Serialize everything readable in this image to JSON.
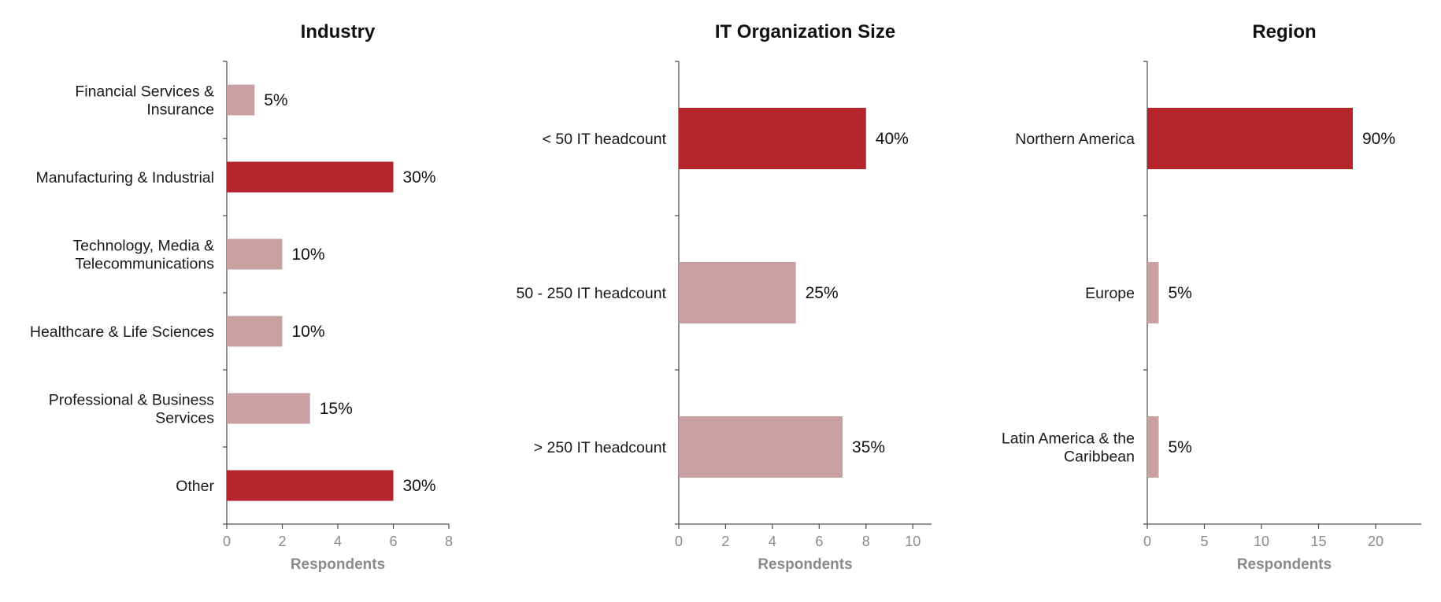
{
  "colors": {
    "highlight": "#b5252e",
    "normal": "#c9a0a2"
  },
  "chart_data": [
    {
      "type": "bar",
      "orientation": "horizontal",
      "title": "Industry",
      "xlabel": "Respondents",
      "xlim": [
        0,
        8
      ],
      "xticks": [
        0,
        2,
        4,
        6,
        8
      ],
      "categories": [
        [
          "Financial Services &",
          "Insurance"
        ],
        [
          "Manufacturing & Industrial"
        ],
        [
          "Technology, Media &",
          "Telecommunications"
        ],
        [
          "Healthcare & Life Sciences"
        ],
        [
          "Professional & Business",
          "Services"
        ],
        [
          "Other"
        ]
      ],
      "values": [
        1,
        6,
        2,
        2,
        3,
        6
      ],
      "labels": [
        "5%",
        "30%",
        "10%",
        "10%",
        "15%",
        "30%"
      ],
      "highlight": [
        false,
        true,
        false,
        false,
        false,
        true
      ]
    },
    {
      "type": "bar",
      "orientation": "horizontal",
      "title": "IT Organization Size",
      "xlabel": "Respondents",
      "xlim": [
        0,
        10.8
      ],
      "xticks": [
        0,
        2,
        4,
        6,
        8,
        10
      ],
      "categories": [
        [
          "< 50 IT headcount"
        ],
        [
          "50 - 250 IT headcount"
        ],
        [
          "> 250 IT headcount"
        ]
      ],
      "values": [
        8,
        5,
        7
      ],
      "labels": [
        "40%",
        "25%",
        "35%"
      ],
      "highlight": [
        true,
        false,
        false
      ]
    },
    {
      "type": "bar",
      "orientation": "horizontal",
      "title": "Region",
      "xlabel": "Respondents",
      "xlim": [
        0,
        24
      ],
      "xticks": [
        0,
        5,
        10,
        15,
        20
      ],
      "categories": [
        [
          "Northern America"
        ],
        [
          "Europe"
        ],
        [
          "Latin America & the",
          "Caribbean"
        ]
      ],
      "values": [
        18,
        1,
        1
      ],
      "labels": [
        "90%",
        "5%",
        "5%"
      ],
      "highlight": [
        true,
        false,
        false
      ]
    }
  ]
}
